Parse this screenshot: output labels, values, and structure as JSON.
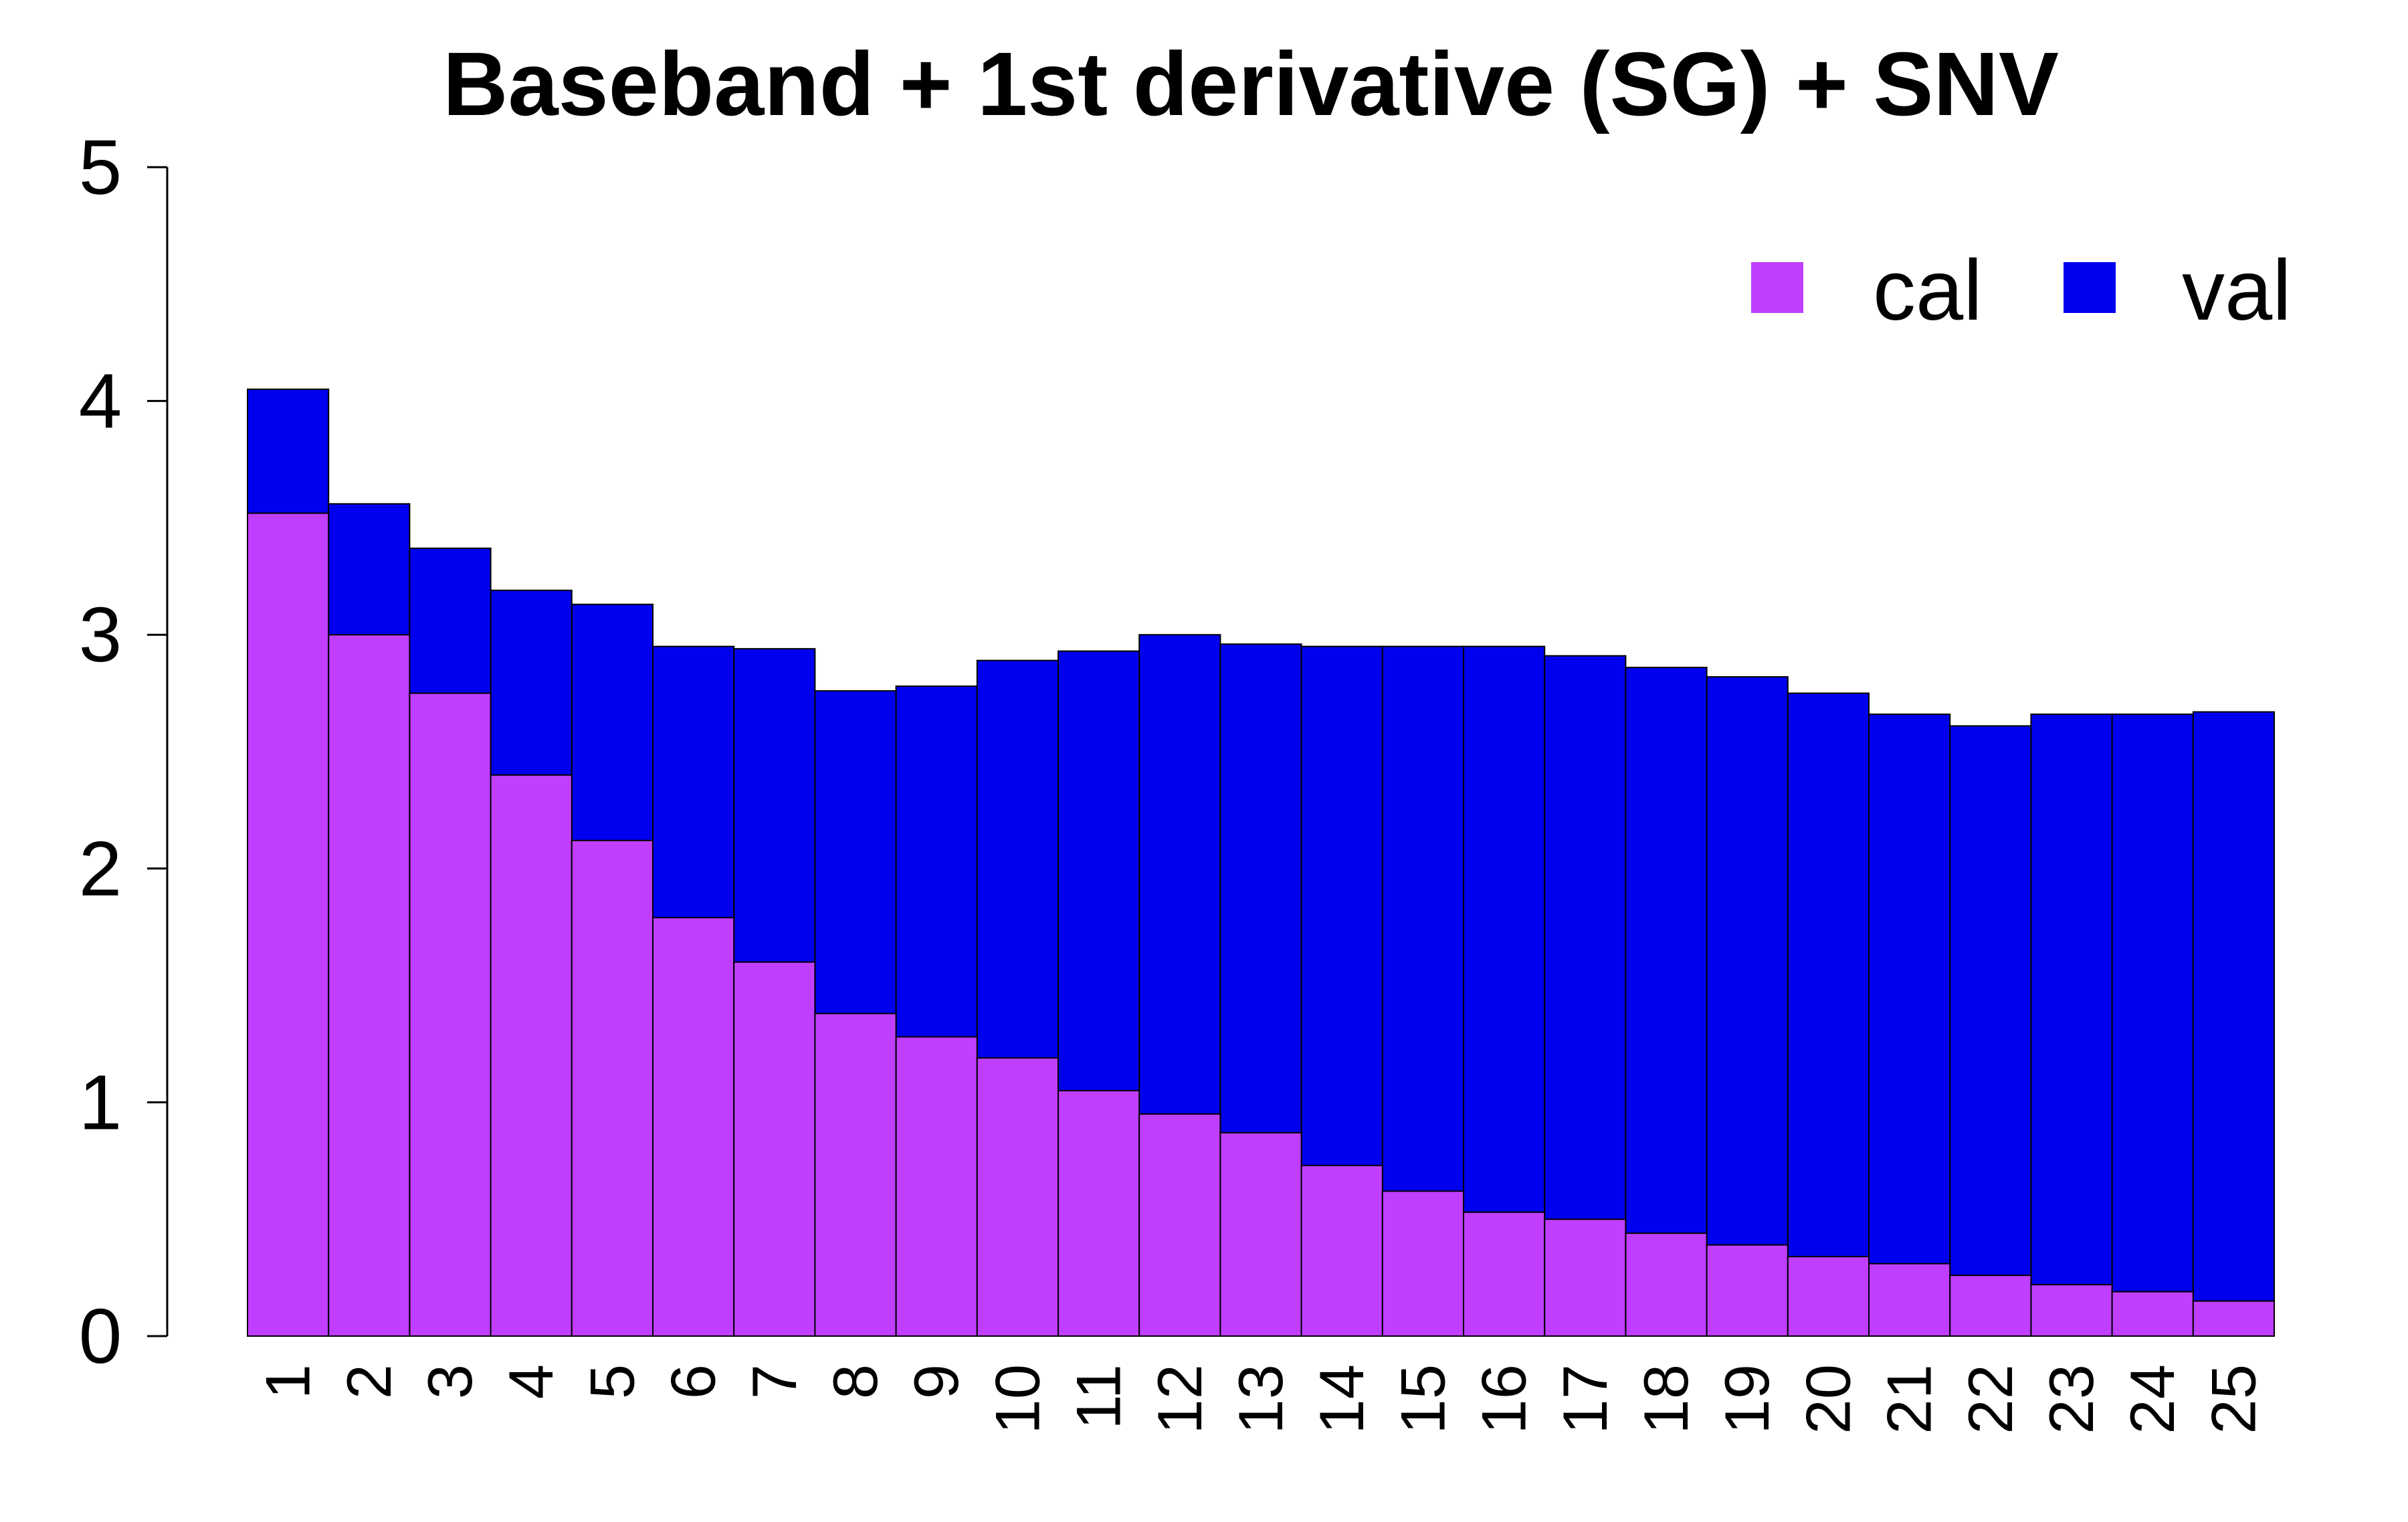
{
  "chart_data": {
    "type": "bar",
    "stacked": false,
    "overlaid": true,
    "title": "Baseband + 1st derivative (SG) + SNV",
    "xlabel": "",
    "ylabel": "",
    "ylim": [
      0,
      5
    ],
    "yticks": [
      "0",
      "1",
      "2",
      "3",
      "4",
      "5"
    ],
    "categories": [
      "1",
      "2",
      "3",
      "4",
      "5",
      "6",
      "7",
      "8",
      "9",
      "10",
      "11",
      "12",
      "13",
      "14",
      "15",
      "16",
      "17",
      "18",
      "19",
      "20",
      "21",
      "22",
      "23",
      "24",
      "25"
    ],
    "grid": false,
    "legend_position": "top-right",
    "series": [
      {
        "name": "val",
        "color": "#0000EE",
        "values": [
          4.05,
          3.56,
          3.37,
          3.19,
          3.13,
          2.95,
          2.94,
          2.76,
          2.78,
          2.89,
          2.93,
          3.0,
          2.96,
          2.95,
          2.95,
          2.95,
          2.91,
          2.86,
          2.82,
          2.75,
          2.66,
          2.61,
          2.66,
          2.66,
          2.67
        ]
      },
      {
        "name": "cal",
        "color": "#BF3EFF",
        "values": [
          3.52,
          3.0,
          2.75,
          2.4,
          2.12,
          1.79,
          1.6,
          1.38,
          1.28,
          1.19,
          1.05,
          0.95,
          0.87,
          0.73,
          0.62,
          0.53,
          0.5,
          0.44,
          0.39,
          0.34,
          0.31,
          0.26,
          0.22,
          0.19,
          0.15
        ]
      }
    ],
    "legend": [
      {
        "label": "cal",
        "color": "#BF3EFF"
      },
      {
        "label": "val",
        "color": "#0000EE"
      }
    ]
  }
}
